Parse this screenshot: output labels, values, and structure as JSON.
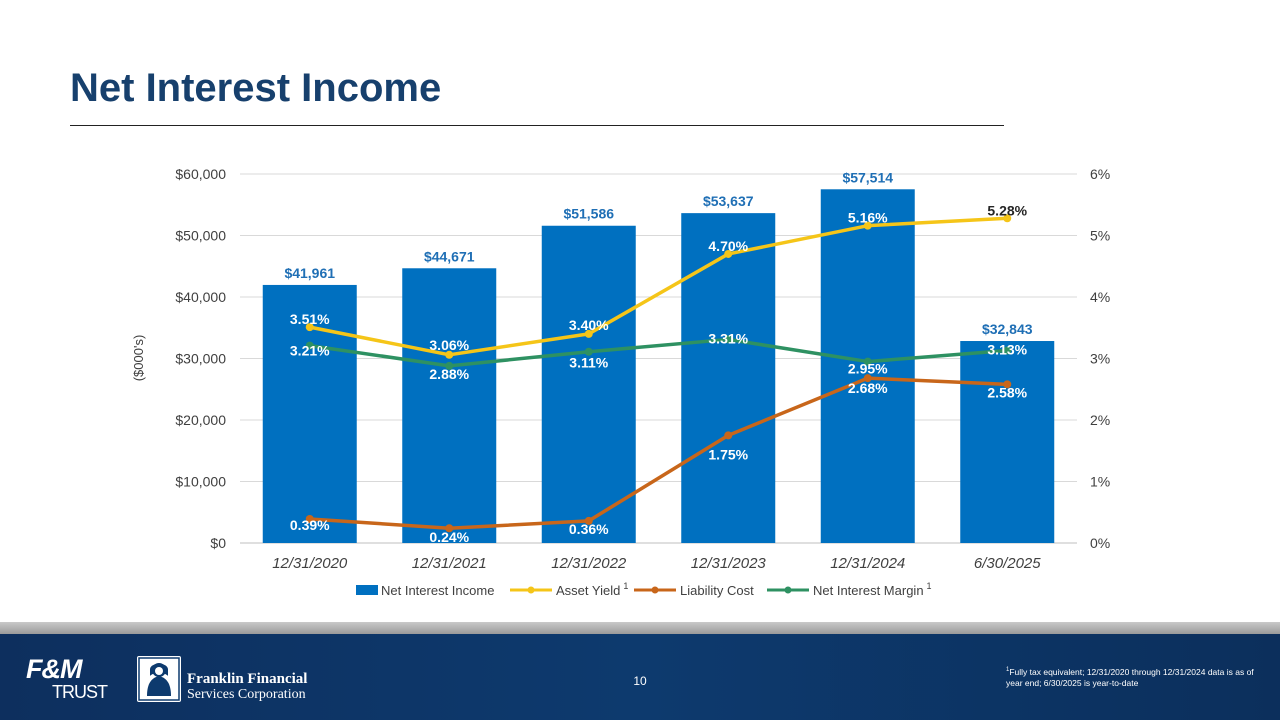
{
  "slide": {
    "title": "Net Interest Income",
    "page_number": "10"
  },
  "footer": {
    "fm_logo_top": "F&M",
    "fm_logo_bottom": "TRUST",
    "company_line1": "Franklin Financial",
    "company_line2": "Services Corporation",
    "footnote_marker": "1",
    "footnote_text": "Fully tax equivalent; 12/31/2020 through 12/31/2024 data is as of year end; 6/30/2025 is year-to-date"
  },
  "colors": {
    "title": "#17406d",
    "bar": "#0070c0",
    "bar_label": "#1f6fb5",
    "asset_yield": "#f5c518",
    "liability_cost": "#c8661a",
    "net_interest_margin": "#2e9162",
    "grid": "#d9d9d9",
    "axis_text": "#404040"
  },
  "chart_data": {
    "type": "bar",
    "title": "",
    "ylabel": "($000's)",
    "xlabel": "",
    "categories": [
      "12/31/2020",
      "12/31/2021",
      "12/31/2022",
      "12/31/2023",
      "12/31/2024",
      "6/30/2025"
    ],
    "ylim": [
      0,
      60000
    ],
    "y2lim": [
      0,
      6
    ],
    "y_ticks": [
      "$0",
      "$10,000",
      "$20,000",
      "$30,000",
      "$40,000",
      "$50,000",
      "$60,000"
    ],
    "y2_ticks": [
      "0%",
      "1%",
      "2%",
      "3%",
      "4%",
      "5%",
      "6%"
    ],
    "grid": true,
    "legend_position": "bottom",
    "series": [
      {
        "name": "Net Interest Income",
        "type": "bar",
        "axis": "left",
        "values": [
          41961,
          44671,
          51586,
          53637,
          57514,
          32843
        ],
        "labels": [
          "$41,961",
          "$44,671",
          "$51,586",
          "$53,637",
          "$57,514",
          "$32,843"
        ]
      },
      {
        "name": "Asset Yield",
        "superscript": "1",
        "type": "line",
        "axis": "right",
        "values": [
          3.51,
          3.06,
          3.4,
          4.7,
          5.16,
          5.28
        ],
        "labels": [
          "3.51%",
          "3.06%",
          "3.40%",
          "4.70%",
          "5.16%",
          "5.28%"
        ]
      },
      {
        "name": "Liability Cost",
        "type": "line",
        "axis": "right",
        "values": [
          0.39,
          0.24,
          0.36,
          1.75,
          2.68,
          2.58
        ],
        "labels": [
          "0.39%",
          "0.24%",
          "0.36%",
          "1.75%",
          "2.68%",
          "2.58%"
        ]
      },
      {
        "name": "Net Interest Margin",
        "superscript": "1",
        "type": "line",
        "axis": "right",
        "values": [
          3.21,
          2.88,
          3.11,
          3.31,
          2.95,
          3.13
        ],
        "labels": [
          "3.21%",
          "2.88%",
          "3.11%",
          "3.31%",
          "2.95%",
          "3.13%"
        ]
      }
    ]
  }
}
